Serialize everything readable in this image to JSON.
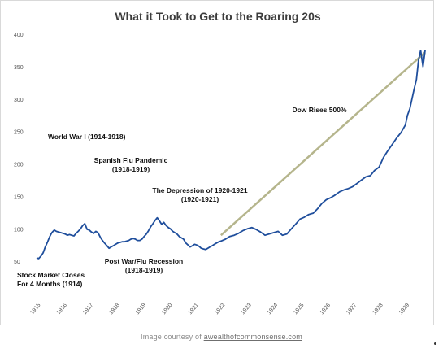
{
  "credit": {
    "prefix": "Image courtesy of ",
    "link": "awealthofcommonsense.com"
  },
  "chart_data": {
    "type": "line",
    "title": "What it Took to Get to the Roaring 20s",
    "xlabel": "",
    "ylabel": "",
    "ylim": [
      0,
      400
    ],
    "y_ticks": [
      0,
      50,
      100,
      150,
      200,
      250,
      300,
      350,
      400
    ],
    "y_tick_labels": [
      "",
      "50",
      "100",
      "150",
      "200",
      "250",
      "300",
      "350",
      "400"
    ],
    "xlim": [
      1915,
      1929.75
    ],
    "x_ticks": [
      1915,
      1916,
      1917,
      1918,
      1919,
      1920,
      1921,
      1922,
      1923,
      1924,
      1925,
      1926,
      1927,
      1928,
      1929
    ],
    "grid": false,
    "legend": "none",
    "line_color": "#1f4e9c",
    "trend_color": "#b5b58c",
    "series": [
      {
        "x": [
          1915.0,
          1915.08,
          1915.17,
          1915.25,
          1915.33,
          1915.42,
          1915.5,
          1915.58,
          1915.67,
          1915.75,
          1915.83,
          1915.92,
          1916.0,
          1916.08,
          1916.17,
          1916.25,
          1916.33,
          1916.42,
          1916.5,
          1916.58,
          1916.67,
          1916.75,
          1916.83,
          1916.92,
          1917.0,
          1917.08,
          1917.17,
          1917.25,
          1917.33,
          1917.42,
          1917.5,
          1917.58,
          1917.67,
          1917.75,
          1917.83,
          1917.92,
          1918.0,
          1918.08,
          1918.17,
          1918.25,
          1918.33,
          1918.42,
          1918.5,
          1918.58,
          1918.67,
          1918.75,
          1918.83,
          1918.92,
          1919.0,
          1919.08,
          1919.17,
          1919.25,
          1919.33,
          1919.42,
          1919.5,
          1919.58,
          1919.67,
          1919.75,
          1919.83,
          1919.92,
          1920.0,
          1920.08,
          1920.17,
          1920.25,
          1920.33,
          1920.42,
          1920.5,
          1920.58,
          1920.67,
          1920.75,
          1920.83,
          1920.92,
          1921.0,
          1921.08,
          1921.17,
          1921.25,
          1921.33,
          1921.42,
          1921.5,
          1921.58,
          1921.67,
          1921.75,
          1921.83,
          1921.92,
          1922.0,
          1922.17,
          1922.33,
          1922.5,
          1922.67,
          1922.83,
          1923.0,
          1923.17,
          1923.33,
          1923.5,
          1923.67,
          1923.83,
          1924.0,
          1924.17,
          1924.33,
          1924.5,
          1924.67,
          1924.83,
          1925.0,
          1925.17,
          1925.33,
          1925.5,
          1925.67,
          1925.83,
          1926.0,
          1926.17,
          1926.33,
          1926.5,
          1926.67,
          1926.83,
          1927.0,
          1927.17,
          1927.33,
          1927.5,
          1927.67,
          1927.83,
          1928.0,
          1928.17,
          1928.33,
          1928.5,
          1928.67,
          1928.83,
          1929.0,
          1929.08,
          1929.17,
          1929.25,
          1929.33,
          1929.42,
          1929.5,
          1929.58,
          1929.67,
          1929.75
        ],
        "y": [
          55,
          54,
          58,
          63,
          72,
          80,
          88,
          94,
          98,
          96,
          95,
          94,
          93,
          92,
          90,
          91,
          90,
          89,
          93,
          96,
          100,
          105,
          108,
          99,
          98,
          95,
          93,
          96,
          94,
          87,
          82,
          78,
          74,
          70,
          72,
          74,
          76,
          78,
          79,
          80,
          80,
          81,
          82,
          84,
          85,
          84,
          82,
          82,
          84,
          88,
          92,
          97,
          103,
          108,
          113,
          117,
          112,
          107,
          110,
          105,
          102,
          100,
          96,
          94,
          92,
          88,
          86,
          84,
          78,
          75,
          72,
          74,
          76,
          75,
          73,
          70,
          69,
          68,
          70,
          72,
          74,
          76,
          78,
          80,
          81,
          84,
          88,
          90,
          93,
          97,
          100,
          102,
          99,
          95,
          90,
          92,
          94,
          96,
          90,
          92,
          100,
          107,
          115,
          118,
          122,
          124,
          131,
          139,
          145,
          148,
          152,
          157,
          160,
          162,
          165,
          170,
          175,
          180,
          182,
          190,
          195,
          210,
          220,
          230,
          240,
          248,
          260,
          275,
          285,
          300,
          315,
          330,
          360,
          375,
          350,
          375
        ]
      }
    ],
    "trend_line": {
      "label": "Dow Rises 500%",
      "from": [
        1922.0,
        90
      ],
      "to": [
        1929.75,
        372
      ]
    },
    "annotations": [
      {
        "lines": [
          "World War I (1914-1918)"
        ]
      },
      {
        "lines": [
          "Spanish Flu Pandemic",
          "(1918-1919)"
        ]
      },
      {
        "lines": [
          "The Depression of 1920-1921",
          "(1920-1921)"
        ]
      },
      {
        "lines": [
          "Post War/Flu Recession",
          "(1918-1919)"
        ]
      },
      {
        "lines": [
          "Stock Market Closes",
          "For 4 Months (1914)"
        ]
      },
      {
        "lines": [
          "Dow Rises 500%"
        ]
      }
    ]
  }
}
